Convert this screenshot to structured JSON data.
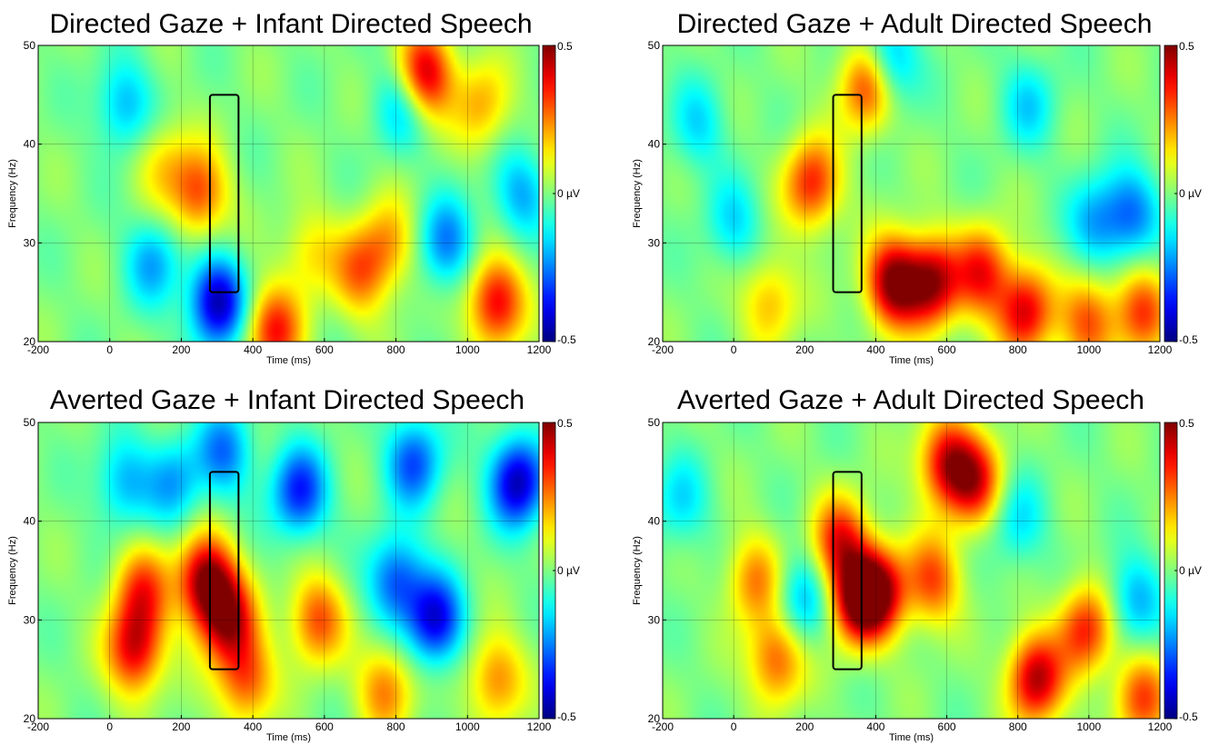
{
  "chart_data": [
    {
      "type": "heatmap",
      "title": "Directed Gaze + Infant Directed Speech",
      "xlabel": "Time (ms)",
      "ylabel": "Frequency (Hz)",
      "xlim": [
        -200,
        1200
      ],
      "ylim": [
        20,
        50
      ],
      "xticks": [
        -200,
        0,
        200,
        400,
        600,
        800,
        1000,
        1200
      ],
      "yticks": [
        20,
        30,
        40,
        50
      ],
      "color_range": [
        -0.5,
        0.5
      ],
      "colorbar_labels": [
        "0.5",
        "0 µV",
        "-0.5"
      ],
      "colormap": "jet",
      "grid": true,
      "highlight_box": {
        "time": [
          280,
          360
        ],
        "freq": [
          25,
          45
        ]
      },
      "features": [
        {
          "t": 250,
          "f": 35,
          "v": 0.3
        },
        {
          "t": 300,
          "f": 24,
          "v": -0.45
        },
        {
          "t": 150,
          "f": 38,
          "v": 0.15
        },
        {
          "t": 460,
          "f": 21,
          "v": 0.35
        },
        {
          "t": 880,
          "f": 47,
          "v": 0.45
        },
        {
          "t": 1080,
          "f": 24,
          "v": 0.4
        },
        {
          "t": 120,
          "f": 28,
          "v": -0.2
        },
        {
          "t": 40,
          "f": 44,
          "v": -0.2
        },
        {
          "t": 820,
          "f": 44,
          "v": -0.2
        },
        {
          "t": 940,
          "f": 30,
          "v": -0.25
        },
        {
          "t": 1150,
          "f": 35,
          "v": -0.2
        },
        {
          "t": 700,
          "f": 27,
          "v": 0.25
        },
        {
          "t": 780,
          "f": 30,
          "v": 0.2
        },
        {
          "t": 560,
          "f": 29,
          "v": 0.15
        },
        {
          "t": 1040,
          "f": 44,
          "v": 0.2
        }
      ]
    },
    {
      "type": "heatmap",
      "title": "Directed Gaze + Adult Directed Speech",
      "xlabel": "Time (ms)",
      "ylabel": "Frequency (Hz)",
      "xlim": [
        -200,
        1200
      ],
      "ylim": [
        20,
        50
      ],
      "xticks": [
        -200,
        0,
        200,
        400,
        600,
        800,
        1000,
        1200
      ],
      "yticks": [
        20,
        30,
        40,
        50
      ],
      "color_range": [
        -0.5,
        0.5
      ],
      "colorbar_labels": [
        "0.5",
        "0 µV",
        "-0.5"
      ],
      "colormap": "jet",
      "grid": true,
      "highlight_box": {
        "time": [
          280,
          360
        ],
        "freq": [
          25,
          45
        ]
      },
      "features": [
        {
          "t": 450,
          "f": 26,
          "v": 0.5
        },
        {
          "t": 560,
          "f": 26,
          "v": 0.45
        },
        {
          "t": 220,
          "f": 36,
          "v": 0.35
        },
        {
          "t": 380,
          "f": 46,
          "v": 0.4
        },
        {
          "t": 820,
          "f": 23,
          "v": 0.4
        },
        {
          "t": 1000,
          "f": 22,
          "v": 0.3
        },
        {
          "t": 700,
          "f": 27,
          "v": 0.35
        },
        {
          "t": 1150,
          "f": 23,
          "v": 0.3
        },
        {
          "t": 100,
          "f": 24,
          "v": 0.2
        },
        {
          "t": 430,
          "f": 48,
          "v": -0.3
        },
        {
          "t": 1120,
          "f": 33,
          "v": -0.25
        },
        {
          "t": 1020,
          "f": 32,
          "v": -0.2
        },
        {
          "t": -100,
          "f": 42,
          "v": -0.15
        },
        {
          "t": 830,
          "f": 44,
          "v": -0.15
        },
        {
          "t": 0,
          "f": 32,
          "v": -0.15
        }
      ]
    },
    {
      "type": "heatmap",
      "title": "Averted Gaze + Infant Directed Speech",
      "xlabel": "Time (ms)",
      "ylabel": "Frequency (Hz)",
      "xlim": [
        -200,
        1200
      ],
      "ylim": [
        20,
        50
      ],
      "xticks": [
        -200,
        0,
        200,
        400,
        600,
        800,
        1000,
        1200
      ],
      "yticks": [
        20,
        30,
        40,
        50
      ],
      "color_range": [
        -0.5,
        0.5
      ],
      "colorbar_labels": [
        "0.5",
        "0 µV",
        "-0.5"
      ],
      "colormap": "jet",
      "grid": true,
      "highlight_box": {
        "time": [
          280,
          360
        ],
        "freq": [
          25,
          45
        ]
      },
      "features": [
        {
          "t": 270,
          "f": 34,
          "v": 0.5
        },
        {
          "t": 330,
          "f": 30,
          "v": 0.4
        },
        {
          "t": 70,
          "f": 27,
          "v": 0.4
        },
        {
          "t": 90,
          "f": 33,
          "v": 0.3
        },
        {
          "t": 380,
          "f": 24,
          "v": 0.3
        },
        {
          "t": 580,
          "f": 30,
          "v": 0.3
        },
        {
          "t": 770,
          "f": 23,
          "v": 0.25
        },
        {
          "t": 1080,
          "f": 24,
          "v": 0.25
        },
        {
          "t": 910,
          "f": 30,
          "v": -0.4
        },
        {
          "t": 800,
          "f": 34,
          "v": -0.3
        },
        {
          "t": 1140,
          "f": 44,
          "v": -0.45
        },
        {
          "t": 530,
          "f": 43,
          "v": -0.35
        },
        {
          "t": 320,
          "f": 47,
          "v": -0.25
        },
        {
          "t": 180,
          "f": 44,
          "v": -0.2
        },
        {
          "t": 850,
          "f": 46,
          "v": -0.3
        },
        {
          "t": 40,
          "f": 44,
          "v": -0.2
        }
      ]
    },
    {
      "type": "heatmap",
      "title": "Averted Gaze + Adult Directed Speech",
      "xlabel": "Time (ms)",
      "ylabel": "Frequency (Hz)",
      "xlim": [
        -200,
        1200
      ],
      "ylim": [
        20,
        50
      ],
      "xticks": [
        -200,
        0,
        200,
        400,
        600,
        800,
        1000,
        1200
      ],
      "yticks": [
        20,
        30,
        40,
        50
      ],
      "color_range": [
        -0.5,
        0.5
      ],
      "colorbar_labels": [
        "0.5",
        "0 µV",
        "-0.5"
      ],
      "colormap": "jet",
      "grid": true,
      "highlight_box": {
        "time": [
          280,
          360
        ],
        "freq": [
          25,
          45
        ]
      },
      "features": [
        {
          "t": 350,
          "f": 32,
          "v": 0.45
        },
        {
          "t": 410,
          "f": 33,
          "v": 0.4
        },
        {
          "t": 300,
          "f": 38,
          "v": 0.35
        },
        {
          "t": 600,
          "f": 46,
          "v": 0.4
        },
        {
          "t": 680,
          "f": 44,
          "v": 0.35
        },
        {
          "t": 850,
          "f": 24,
          "v": 0.45
        },
        {
          "t": 990,
          "f": 29,
          "v": 0.35
        },
        {
          "t": 120,
          "f": 26,
          "v": 0.3
        },
        {
          "t": 560,
          "f": 34,
          "v": 0.3
        },
        {
          "t": 1150,
          "f": 22,
          "v": 0.3
        },
        {
          "t": 60,
          "f": 34,
          "v": 0.25
        },
        {
          "t": 190,
          "f": 32,
          "v": -0.2
        },
        {
          "t": 1130,
          "f": 32,
          "v": -0.2
        },
        {
          "t": 800,
          "f": 40,
          "v": -0.15
        },
        {
          "t": -150,
          "f": 42,
          "v": -0.15
        }
      ]
    }
  ]
}
